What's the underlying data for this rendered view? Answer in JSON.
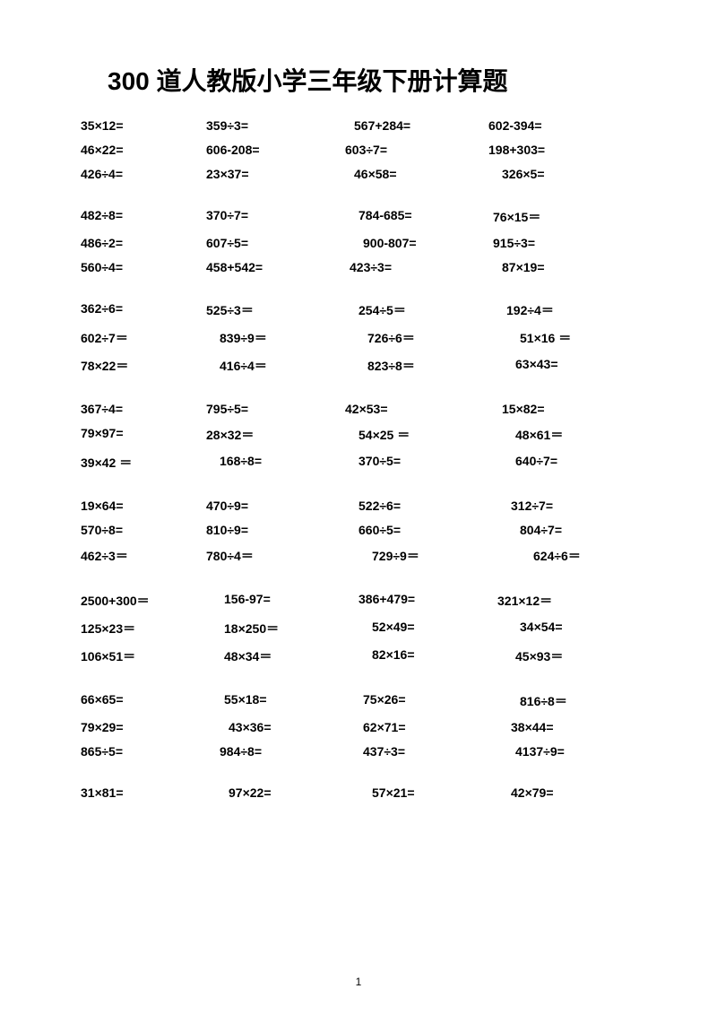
{
  "title": "300 道人教版小学三年级下册计算题",
  "footer": "1",
  "blocks": [
    {
      "rows": [
        {
          "c1": {
            "t": "35×12=",
            "s": ""
          },
          "c2": {
            "t": "359÷3=",
            "s": ""
          },
          "c3": {
            "t": "567+284=",
            "s": "shift10"
          },
          "c4": {
            "t": "602-394=",
            "s": ""
          }
        },
        {
          "c1": {
            "t": "46×22=",
            "s": ""
          },
          "c2": {
            "t": "606-208=",
            "s": ""
          },
          "c3": {
            "t": "603÷7=",
            "s": ""
          },
          "c4": {
            "t": "198+303=",
            "s": ""
          }
        },
        {
          "c1": {
            "t": "426÷4=",
            "s": ""
          },
          "c2": {
            "t": "23×37=",
            "s": ""
          },
          "c3": {
            "t": "46×58=",
            "s": "shift10"
          },
          "c4": {
            "t": "326×5=",
            "s": "shift15"
          }
        }
      ]
    },
    {
      "rows": [
        {
          "c1": {
            "t": "482÷8=",
            "s": ""
          },
          "c2": {
            "t": "370÷7=",
            "s": ""
          },
          "c3": {
            "t": "784-685=",
            "s": "shift15"
          },
          "c4": {
            "t": "76×15＝",
            "s": "shift5"
          }
        },
        {
          "c1": {
            "t": "486÷2=",
            "s": ""
          },
          "c2": {
            "t": "607÷5=",
            "s": ""
          },
          "c3": {
            "t": "900-807=",
            "s": "shift20"
          },
          "c4": {
            "t": "915÷3=",
            "s": "shift5"
          }
        },
        {
          "c1": {
            "t": "560÷4=",
            "s": ""
          },
          "c2": {
            "t": "458+542=",
            "s": ""
          },
          "c3": {
            "t": "423÷3=",
            "s": "shift5"
          },
          "c4": {
            "t": "87×19=",
            "s": "shift15"
          }
        }
      ]
    },
    {
      "rows": [
        {
          "c1": {
            "t": "362÷6=",
            "s": ""
          },
          "c2": {
            "t": "525÷3＝",
            "s": ""
          },
          "c3": {
            "t": "254÷5＝",
            "s": "shift15"
          },
          "c4": {
            "t": "192÷4＝",
            "s": "shift20"
          }
        },
        {
          "c1": {
            "t": "602÷7＝",
            "s": ""
          },
          "c2": {
            "t": "839÷9＝",
            "s": "shift15"
          },
          "c3": {
            "t": "726÷6＝",
            "s": "shift25"
          },
          "c4": {
            "t": "51×16 ＝",
            "s": "shift35"
          }
        },
        {
          "c1": {
            "t": "78×22＝",
            "s": ""
          },
          "c2": {
            "t": "416÷4＝",
            "s": "shift15"
          },
          "c3": {
            "t": "823÷8＝",
            "s": "shift25"
          },
          "c4": {
            "t": "63×43=",
            "s": "shift30"
          }
        }
      ]
    },
    {
      "rows": [
        {
          "c1": {
            "t": "367÷4=",
            "s": ""
          },
          "c2": {
            "t": "795÷5=",
            "s": ""
          },
          "c3": {
            "t": "42×53=",
            "s": ""
          },
          "c4": {
            "t": "15×82=",
            "s": "shift15"
          }
        },
        {
          "c1": {
            "t": "79×97=",
            "s": ""
          },
          "c2": {
            "t": "28×32＝",
            "s": ""
          },
          "c3": {
            "t": "54×25 ＝",
            "s": "shift15"
          },
          "c4": {
            "t": "48×61＝",
            "s": "shift30"
          }
        },
        {
          "c1": {
            "t": "39×42 ＝",
            "s": ""
          },
          "c2": {
            "t": "168÷8=",
            "s": "shift15"
          },
          "c3": {
            "t": "370÷5=",
            "s": "shift15"
          },
          "c4": {
            "t": "640÷7=",
            "s": "shift30"
          }
        }
      ]
    },
    {
      "rows": [
        {
          "c1": {
            "t": "19×64=",
            "s": ""
          },
          "c2": {
            "t": "470÷9=",
            "s": ""
          },
          "c3": {
            "t": "522÷6=",
            "s": "shift15"
          },
          "c4": {
            "t": "312÷7=",
            "s": "shift25"
          }
        },
        {
          "c1": {
            "t": "570÷8=",
            "s": ""
          },
          "c2": {
            "t": "810÷9=",
            "s": ""
          },
          "c3": {
            "t": "660÷5=",
            "s": "shift15"
          },
          "c4": {
            "t": "804÷7=",
            "s": "shift35"
          }
        },
        {
          "c1": {
            "t": "462÷3＝",
            "s": ""
          },
          "c2": {
            "t": "780÷4＝",
            "s": ""
          },
          "c3": {
            "t": "729÷9＝",
            "s": "shift30"
          },
          "c4": {
            "t": "624÷6＝",
            "s": "shift50"
          }
        }
      ]
    },
    {
      "rows": [
        {
          "c1": {
            "t": "2500+300＝",
            "s": ""
          },
          "c2": {
            "t": "156-97=",
            "s": "shift20"
          },
          "c3": {
            "t": "386+479=",
            "s": "shift15"
          },
          "c4": {
            "t": "321×12＝",
            "s": "shift10"
          }
        },
        {
          "c1": {
            "t": "125×23＝",
            "s": ""
          },
          "c2": {
            "t": "18×250＝",
            "s": "shift20"
          },
          "c3": {
            "t": "52×49=",
            "s": "shift30"
          },
          "c4": {
            "t": "34×54=",
            "s": "shift35"
          }
        },
        {
          "c1": {
            "t": "106×51＝",
            "s": ""
          },
          "c2": {
            "t": "48×34＝",
            "s": "shift20"
          },
          "c3": {
            "t": "82×16=",
            "s": "shift30"
          },
          "c4": {
            "t": "45×93＝",
            "s": "shift30"
          }
        }
      ]
    },
    {
      "rows": [
        {
          "c1": {
            "t": "66×65=",
            "s": ""
          },
          "c2": {
            "t": "55×18=",
            "s": "shift20"
          },
          "c3": {
            "t": "75×26=",
            "s": "shift20"
          },
          "c4": {
            "t": "816÷8＝",
            "s": "shift35"
          }
        },
        {
          "c1": {
            "t": "79×29=",
            "s": ""
          },
          "c2": {
            "t": "43×36=",
            "s": "shift25"
          },
          "c3": {
            "t": "62×71=",
            "s": "shift20"
          },
          "c4": {
            "t": "38×44=",
            "s": "shift25"
          }
        },
        {
          "c1": {
            "t": "865÷5=",
            "s": ""
          },
          "c2": {
            "t": "984÷8=",
            "s": "shift15"
          },
          "c3": {
            "t": "437÷3=",
            "s": "shift20"
          },
          "c4": {
            "t": "4137÷9=",
            "s": "shift30"
          }
        }
      ]
    },
    {
      "rows": [
        {
          "c1": {
            "t": "31×81=",
            "s": ""
          },
          "c2": {
            "t": "97×22=",
            "s": "shift25"
          },
          "c3": {
            "t": "57×21=",
            "s": "shift30"
          },
          "c4": {
            "t": "42×79=",
            "s": "shift25"
          }
        }
      ]
    }
  ]
}
